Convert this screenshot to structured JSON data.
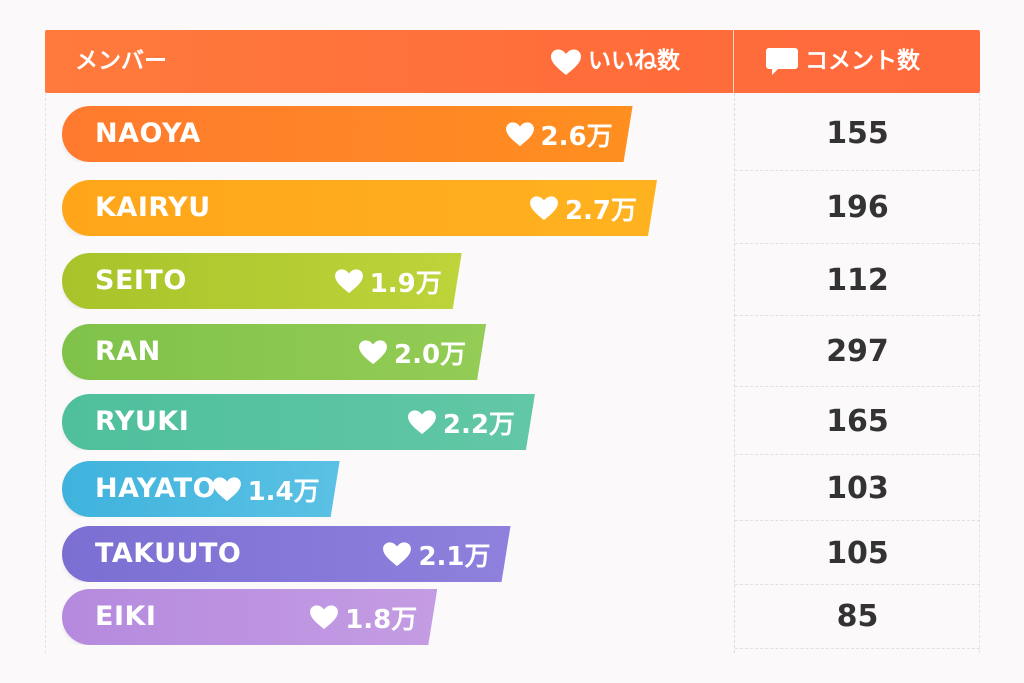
{
  "header": {
    "member_label": "メンバー",
    "likes_label": "いいね数",
    "comments_label": "コメント数",
    "color": "#ff6f3c"
  },
  "chart_data": {
    "type": "bar",
    "orientation": "horizontal",
    "x_max": 2.7,
    "categories": [
      "NAOYA",
      "KAIRYU",
      "SEITO",
      "RAN",
      "RYUKI",
      "HAYATO",
      "TAKUUTO",
      "EIKI"
    ],
    "series": [
      {
        "name": "いいね数",
        "values": [
          2.6,
          2.7,
          1.9,
          2.0,
          2.2,
          1.4,
          2.1,
          1.8
        ],
        "labels": [
          "2.6万",
          "2.7万",
          "1.9万",
          "2.0万",
          "2.2万",
          "1.4万",
          "2.1万",
          "1.8万"
        ]
      },
      {
        "name": "コメント数",
        "values": [
          155,
          196,
          112,
          297,
          165,
          103,
          105,
          85
        ]
      }
    ],
    "bar_colors": [
      [
        "#ff7a2e",
        "#ff8f1f"
      ],
      [
        "#ffa51a",
        "#ffb21f"
      ],
      [
        "#a7c42a",
        "#bfd33a"
      ],
      [
        "#7fc24a",
        "#94cc55"
      ],
      [
        "#4fbf9c",
        "#62c7a6"
      ],
      [
        "#3fb3dd",
        "#5bc1e4"
      ],
      [
        "#7b6fd3",
        "#8e80dc"
      ],
      [
        "#b58ade",
        "#c49ce3"
      ]
    ]
  }
}
